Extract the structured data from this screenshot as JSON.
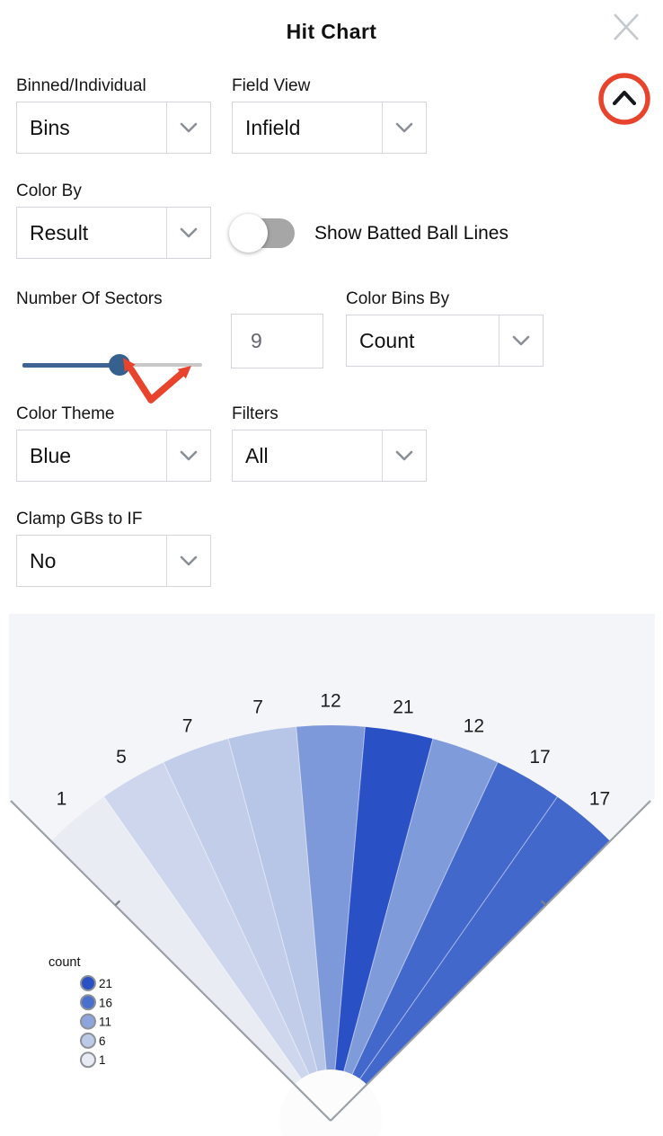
{
  "header": {
    "title": "Hit Chart",
    "close_icon": "x-icon",
    "collapse_icon": "chevron-up-icon"
  },
  "controls": {
    "binned_individual": {
      "label": "Binned/Individual",
      "value": "Bins"
    },
    "field_view": {
      "label": "Field View",
      "value": "Infield"
    },
    "color_by": {
      "label": "Color By",
      "value": "Result"
    },
    "batted_ball_toggle": {
      "label": "Show Batted Ball Lines",
      "state": "off"
    },
    "number_of_sectors": {
      "label": "Number Of Sectors",
      "value": "9",
      "slider_percent": 54
    },
    "color_bins_by": {
      "label": "Color Bins By",
      "value": "Count"
    },
    "color_theme": {
      "label": "Color Theme",
      "value": "Blue"
    },
    "filters": {
      "label": "Filters",
      "value": "All"
    },
    "clamp_gbs": {
      "label": "Clamp GBs to IF",
      "value": "No"
    }
  },
  "colors": {
    "annotation_red": "#e8432c",
    "slider_blue": "#3f6496",
    "slider_knob": "#36618e",
    "toggle_gray": "#a6a6a6",
    "panel_bg": "#f4f5f8",
    "foul_line": "#9aa0a6"
  },
  "chart_data": {
    "type": "fan-sectors",
    "description": "Baseball infield spray chart, 9 angular sectors spanning 90 degrees, colored by count (Blue theme)",
    "values": [
      1,
      5,
      7,
      7,
      12,
      21,
      12,
      17,
      17
    ],
    "sectors": [
      {
        "label": "1",
        "count": 1,
        "color": "#e9ecf3"
      },
      {
        "label": "5",
        "count": 5,
        "color": "#cdd6ec"
      },
      {
        "label": "7",
        "count": 7,
        "color": "#c2cde9"
      },
      {
        "label": "7",
        "count": 7,
        "color": "#b7c5e6"
      },
      {
        "label": "12",
        "count": 12,
        "color": "#7e99d9"
      },
      {
        "label": "21",
        "count": 21,
        "color": "#2a50c5"
      },
      {
        "label": "12",
        "count": 12,
        "color": "#809bda"
      },
      {
        "label": "17",
        "count": 17,
        "color": "#4368cb"
      },
      {
        "label": "17",
        "count": 17,
        "color": "#4368cb"
      }
    ],
    "angle_span_deg": 90,
    "legend": {
      "title": "count",
      "position": "bottom-left",
      "entries": [
        {
          "value": "21",
          "color": "#2a50c4"
        },
        {
          "value": "16",
          "color": "#4a6fcc"
        },
        {
          "value": "11",
          "color": "#8da4dc"
        },
        {
          "value": "6",
          "color": "#bcc9e7"
        },
        {
          "value": "1",
          "color": "#e8ebf3"
        }
      ]
    }
  }
}
